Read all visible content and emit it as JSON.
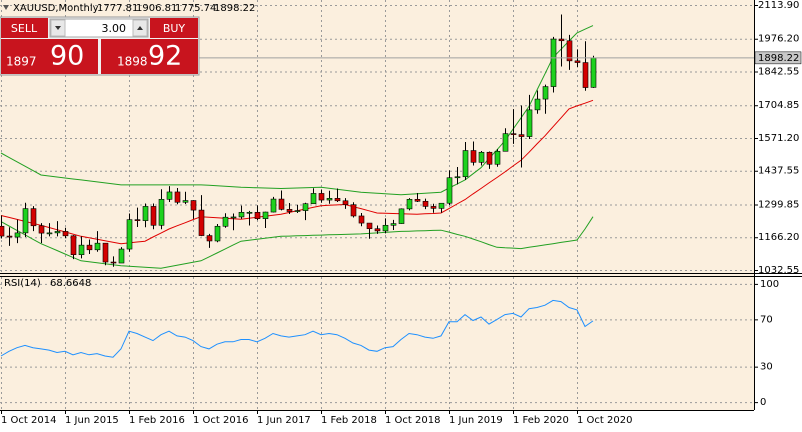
{
  "chart_data": [
    {
      "type": "candlestick",
      "title": "XAUUSD,Monthly",
      "categories": [
        "1 Oct 2014",
        null,
        null,
        null,
        null,
        null,
        null,
        null,
        "1 Jun 2015",
        null,
        null,
        null,
        null,
        null,
        null,
        null,
        "1 Feb 2016",
        null,
        null,
        null,
        null,
        null,
        null,
        null,
        "1 Oct 2016",
        null,
        null,
        null,
        null,
        null,
        null,
        null,
        "1 Jun 2017",
        null,
        null,
        null,
        null,
        null,
        null,
        null,
        "1 Feb 2018",
        null,
        null,
        null,
        null,
        null,
        null,
        null,
        "1 Oct 2018",
        null,
        null,
        null,
        null,
        null,
        null,
        null,
        "1 Jun 2019",
        null,
        null,
        null,
        null,
        null,
        null,
        null,
        "1 Feb 2020",
        null,
        null,
        null,
        null,
        null,
        null,
        null,
        "1 Oct 2020",
        null,
        null
      ],
      "open": [
        1211,
        1171,
        1167,
        1184,
        1283,
        1213,
        1183,
        1184,
        1190,
        1172,
        1095,
        1134,
        1115,
        1142,
        1065,
        1061,
        1118,
        1238,
        1234,
        1292,
        1215,
        1321,
        1351,
        1309,
        1316,
        1277,
        1173,
        1151,
        1211,
        1248,
        1249,
        1268,
        1268,
        1242,
        1269,
        1322,
        1280,
        1271,
        1275,
        1303,
        1345,
        1318,
        1325,
        1315,
        1299,
        1253,
        1224,
        1201,
        1192,
        1215,
        1222,
        1282,
        1321,
        1313,
        1292,
        1284,
        1305,
        1409,
        1413,
        1520,
        1472,
        1513,
        1464,
        1517,
        1589,
        1585,
        1577,
        1686,
        1730,
        1781,
        1975,
        1968,
        1886,
        1879,
        1777.81
      ],
      "high": [
        1255,
        1207,
        1238,
        1307,
        1293,
        1224,
        1224,
        1232,
        1205,
        1175,
        1170,
        1157,
        1191,
        1142,
        1088,
        1126,
        1263,
        1287,
        1304,
        1304,
        1362,
        1375,
        1367,
        1352,
        1317,
        1338,
        1180,
        1220,
        1264,
        1263,
        1295,
        1274,
        1296,
        1270,
        1331,
        1357,
        1306,
        1299,
        1307,
        1366,
        1361,
        1356,
        1365,
        1326,
        1309,
        1265,
        1224,
        1214,
        1243,
        1237,
        1284,
        1326,
        1347,
        1324,
        1303,
        1306,
        1439,
        1453,
        1555,
        1557,
        1518,
        1516,
        1526,
        1611,
        1689,
        1704,
        1747,
        1765,
        1789,
        1984,
        2075,
        1992,
        1933,
        1966,
        1906.81
      ],
      "low": [
        1161,
        1131,
        1142,
        1167,
        1191,
        1142,
        1170,
        1170,
        1162,
        1077,
        1080,
        1098,
        1107,
        1052,
        1046,
        1061,
        1107,
        1208,
        1207,
        1199,
        1199,
        1310,
        1301,
        1302,
        1241,
        1171,
        1123,
        1146,
        1205,
        1195,
        1241,
        1214,
        1236,
        1204,
        1267,
        1276,
        1261,
        1265,
        1236,
        1303,
        1307,
        1303,
        1310,
        1282,
        1247,
        1211,
        1160,
        1180,
        1182,
        1196,
        1221,
        1276,
        1310,
        1281,
        1266,
        1266,
        1298,
        1382,
        1400,
        1459,
        1459,
        1445,
        1454,
        1517,
        1547,
        1451,
        1567,
        1670,
        1670,
        1757,
        1863,
        1849,
        1860,
        1764,
        1775.74
      ],
      "close": [
        1171,
        1167,
        1184,
        1283,
        1213,
        1183,
        1184,
        1190,
        1172,
        1095,
        1134,
        1115,
        1142,
        1065,
        1061,
        1118,
        1238,
        1234,
        1292,
        1215,
        1321,
        1351,
        1309,
        1316,
        1277,
        1173,
        1151,
        1211,
        1248,
        1249,
        1268,
        1268,
        1242,
        1269,
        1322,
        1280,
        1271,
        1275,
        1303,
        1345,
        1318,
        1325,
        1315,
        1299,
        1253,
        1224,
        1201,
        1192,
        1215,
        1222,
        1282,
        1321,
        1313,
        1292,
        1284,
        1305,
        1409,
        1413,
        1520,
        1472,
        1513,
        1464,
        1517,
        1589,
        1585,
        1577,
        1686,
        1730,
        1781,
        1975,
        1968,
        1886,
        1879,
        1777,
        1898.22
      ],
      "up_color": "#1ed21e",
      "down_color": "#d40000",
      "lines": [
        {
          "color": "#22a022",
          "values": [
            1510,
            1492,
            1474,
            1456,
            1438,
            1420,
            1416,
            1412,
            1408,
            1404,
            1400,
            1396,
            1392,
            1388,
            1384,
            1380,
            1380,
            1380,
            1380,
            1380,
            1380,
            1380,
            1380,
            1380,
            1380,
            1380,
            1378,
            1376,
            1374,
            1372,
            1370,
            1369,
            1368,
            1367,
            1366,
            1365,
            1366,
            1367,
            1368,
            1369,
            1370,
            1366,
            1362,
            1358,
            1354,
            1350,
            1348,
            1346,
            1344,
            1342,
            1340,
            1342,
            1344,
            1346,
            1348,
            1350,
            1367,
            1383,
            1400,
            1425,
            1450,
            1487,
            1523,
            1560,
            1607,
            1653,
            1700,
            1767,
            1833,
            1900,
            1933,
            1967,
            2000,
            2015,
            2030
          ]
        },
        {
          "color": "#22a022",
          "values": [
            1230,
            1212,
            1194,
            1176,
            1158,
            1140,
            1126,
            1112,
            1098,
            1084,
            1070,
            1066,
            1062,
            1058,
            1054,
            1050,
            1048,
            1046,
            1044,
            1042,
            1040,
            1046,
            1052,
            1058,
            1064,
            1070,
            1086,
            1102,
            1118,
            1134,
            1150,
            1154,
            1158,
            1162,
            1166,
            1170,
            1171,
            1172,
            1173,
            1174,
            1175,
            1176,
            1177,
            1178,
            1179,
            1180,
            1182,
            1184,
            1186,
            1188,
            1190,
            1191,
            1192,
            1193,
            1194,
            1195,
            1187,
            1178,
            1170,
            1159,
            1148,
            1136,
            1125,
            1123,
            1122,
            1120,
            1125,
            1130,
            1135,
            1140,
            1145,
            1150,
            1155,
            1200,
            1250
          ]
        },
        {
          "color": "#e00000",
          "values": [
            1255,
            1247,
            1239,
            1231,
            1223,
            1215,
            1206,
            1197,
            1188,
            1179,
            1170,
            1164,
            1158,
            1152,
            1146,
            1140,
            1143,
            1147,
            1150,
            1167,
            1183,
            1200,
            1213,
            1225,
            1238,
            1250,
            1248,
            1246,
            1244,
            1242,
            1240,
            1244,
            1248,
            1252,
            1256,
            1260,
            1267,
            1274,
            1281,
            1288,
            1295,
            1297,
            1298,
            1300,
            1291,
            1283,
            1274,
            1265,
            1264,
            1263,
            1262,
            1261,
            1260,
            1262,
            1263,
            1265,
            1283,
            1302,
            1320,
            1343,
            1365,
            1388,
            1410,
            1433,
            1457,
            1480,
            1513,
            1547,
            1580,
            1617,
            1653,
            1690,
            1702,
            1713,
            1725
          ]
        }
      ],
      "ylim": [
        1020.3,
        2134.3
      ],
      "yticks": [
        {
          "value": 2113.9,
          "label": "2113.90"
        },
        {
          "value": 1976.2,
          "label": "1976.20"
        },
        1842.55,
        1704.85,
        {
          "value": 1571.2,
          "label": "1571.20"
        },
        1437.55,
        1299.85,
        {
          "value": 1166.2,
          "label": "1166.20"
        },
        1032.55
      ],
      "grid": true
    },
    {
      "type": "line",
      "title": "RSI(14)",
      "color": "#1e90ff",
      "values": [
        39,
        43,
        46,
        48,
        46,
        45,
        44,
        42,
        43,
        40,
        42,
        40,
        41,
        39,
        38,
        45,
        60,
        58,
        55,
        52,
        57,
        60,
        56,
        55,
        52,
        47,
        45,
        49,
        51,
        51,
        53,
        53,
        51,
        54,
        58,
        56,
        55,
        56,
        57,
        60,
        57,
        58,
        57,
        54,
        50,
        48,
        44,
        43,
        46,
        47,
        53,
        58,
        57,
        55,
        54,
        56,
        68,
        68,
        74,
        69,
        72,
        66,
        70,
        74,
        75,
        72,
        79,
        80,
        82,
        86,
        85,
        80,
        78,
        64,
        68.6648
      ],
      "ylim": [
        -6.67,
        105.83
      ],
      "yticks": [
        100,
        70,
        30,
        0
      ],
      "grid": true
    }
  ],
  "trade_panel": {
    "sell": "SELL",
    "buy": "BUY",
    "lots": "3.00",
    "bid_prefix": "1897",
    "bid_pips": "90",
    "ask_prefix": "1898",
    "ask_pips": "92"
  }
}
